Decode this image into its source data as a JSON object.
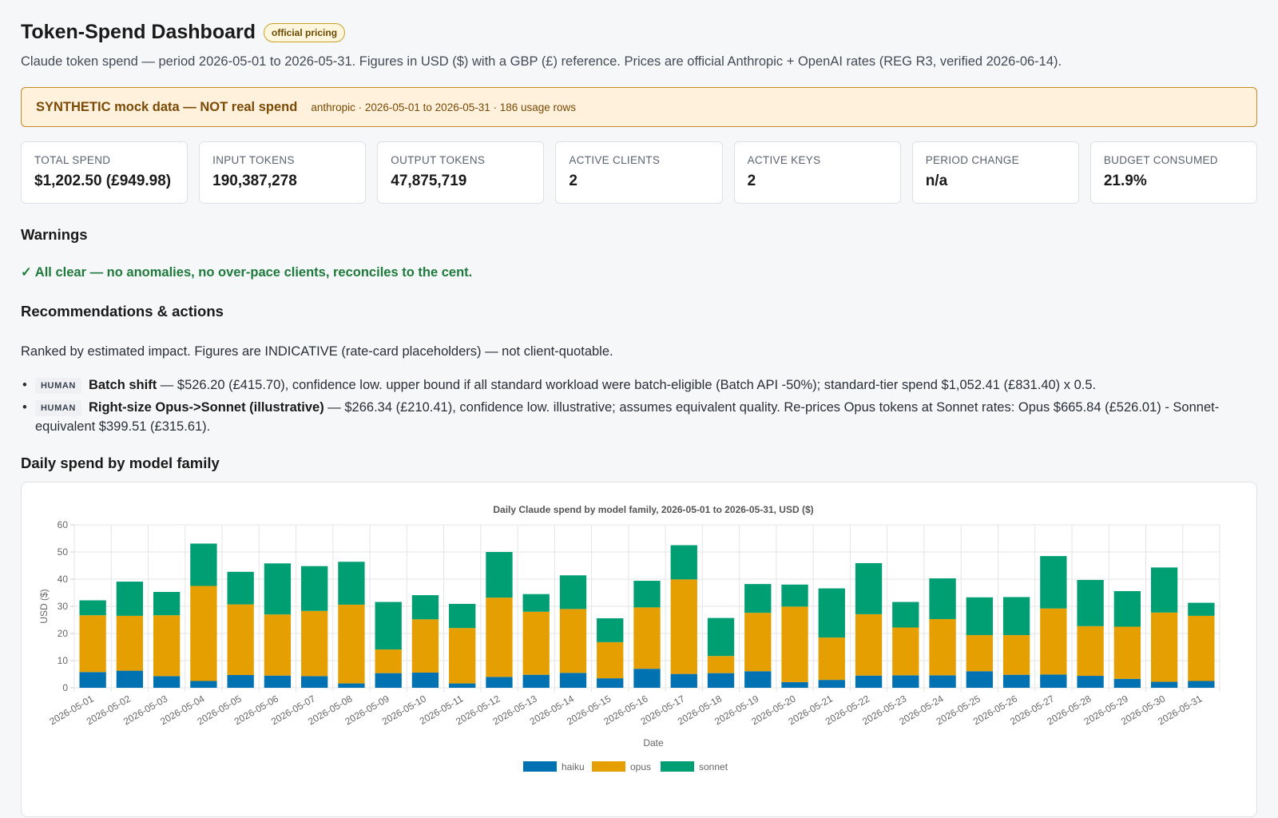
{
  "header": {
    "title": "Token-Spend Dashboard",
    "badge": "official pricing",
    "subtitle": "Claude token spend — period 2026-05-01 to 2026-05-31. Figures in USD ($) with a GBP (£) reference. Prices are official Anthropic + OpenAI rates (REG R3, verified 2026-06-14)."
  },
  "banner": {
    "main": "SYNTHETIC mock data — NOT real spend",
    "meta": "anthropic · 2026-05-01 to 2026-05-31 · 186 usage rows"
  },
  "cards": [
    {
      "label": "TOTAL SPEND",
      "value": "$1,202.50 (£949.98)"
    },
    {
      "label": "INPUT TOKENS",
      "value": "190,387,278"
    },
    {
      "label": "OUTPUT TOKENS",
      "value": "47,875,719"
    },
    {
      "label": "ACTIVE CLIENTS",
      "value": "2"
    },
    {
      "label": "ACTIVE KEYS",
      "value": "2"
    },
    {
      "label": "PERIOD CHANGE",
      "value": "n/a"
    },
    {
      "label": "BUDGET CONSUMED",
      "value": "21.9%"
    }
  ],
  "warnings": {
    "heading": "Warnings",
    "status": "✓ All clear — no anomalies, no over-pace clients, reconciles to the cent."
  },
  "recommendations": {
    "heading": "Recommendations & actions",
    "intro": "Ranked by estimated impact. Figures are INDICATIVE (rate-card placeholders) — not client-quotable.",
    "items": [
      {
        "tag": "HUMAN",
        "title": "Batch shift",
        "text": " — $526.20 (£415.70), confidence low. upper bound if all standard workload were batch-eligible (Batch API -50%); standard-tier spend $1,052.41 (£831.40) x 0.5."
      },
      {
        "tag": "HUMAN",
        "title": "Right-size Opus->Sonnet (illustrative)",
        "text": " — $266.34 (£210.41), confidence low. illustrative; assumes equivalent quality. Re-prices Opus tokens at Sonnet rates: Opus $665.84 (£526.01) - Sonnet-equivalent $399.51 (£315.61)."
      }
    ]
  },
  "chart_section": {
    "heading": "Daily spend by model family"
  },
  "colors": {
    "haiku": "#0072b2",
    "opus": "#e69f00",
    "sonnet": "#009e73"
  },
  "chart_data": {
    "type": "bar",
    "stacked": true,
    "title": "Daily Claude spend by model family, 2026-05-01 to 2026-05-31, USD ($)",
    "xlabel": "Date",
    "ylabel": "USD ($)",
    "ylim": [
      0,
      60
    ],
    "yticks": [
      0,
      10,
      20,
      30,
      40,
      50,
      60
    ],
    "grid": true,
    "legend_position": "bottom",
    "categories": [
      "2026-05-01",
      "2026-05-02",
      "2026-05-03",
      "2026-05-04",
      "2026-05-05",
      "2026-05-06",
      "2026-05-07",
      "2026-05-08",
      "2026-05-09",
      "2026-05-10",
      "2026-05-11",
      "2026-05-12",
      "2026-05-13",
      "2026-05-14",
      "2026-05-15",
      "2026-05-16",
      "2026-05-17",
      "2026-05-18",
      "2026-05-19",
      "2026-05-20",
      "2026-05-21",
      "2026-05-22",
      "2026-05-23",
      "2026-05-24",
      "2026-05-25",
      "2026-05-26",
      "2026-05-27",
      "2026-05-28",
      "2026-05-29",
      "2026-05-30",
      "2026-05-31"
    ],
    "series": [
      {
        "name": "haiku",
        "values": [
          5.8,
          6.3,
          4.3,
          2.5,
          4.7,
          4.5,
          4.3,
          1.6,
          5.4,
          5.6,
          1.6,
          4.0,
          4.8,
          5.5,
          3.5,
          7.0,
          5.1,
          5.4,
          6.1,
          2.1,
          2.9,
          4.5,
          4.6,
          4.6,
          6.1,
          4.8,
          4.9,
          4.4,
          3.3,
          2.2,
          2.5
        ]
      },
      {
        "name": "opus",
        "values": [
          20.9,
          20.2,
          22.4,
          35.0,
          26.0,
          22.5,
          24.0,
          29.0,
          8.7,
          19.6,
          20.4,
          29.2,
          23.2,
          23.5,
          13.3,
          22.6,
          34.8,
          6.3,
          21.5,
          27.8,
          15.6,
          22.6,
          17.6,
          20.7,
          13.3,
          14.6,
          24.3,
          18.3,
          19.2,
          25.5,
          24.0
        ]
      },
      {
        "name": "sonnet",
        "values": [
          5.5,
          12.6,
          8.6,
          15.6,
          12.0,
          18.8,
          16.5,
          15.8,
          17.5,
          8.9,
          8.9,
          16.8,
          6.5,
          12.4,
          8.8,
          9.8,
          12.6,
          14.0,
          10.6,
          8.1,
          18.1,
          18.8,
          9.4,
          15.0,
          13.9,
          14.0,
          19.3,
          17.0,
          13.1,
          16.6,
          4.8
        ]
      }
    ]
  }
}
